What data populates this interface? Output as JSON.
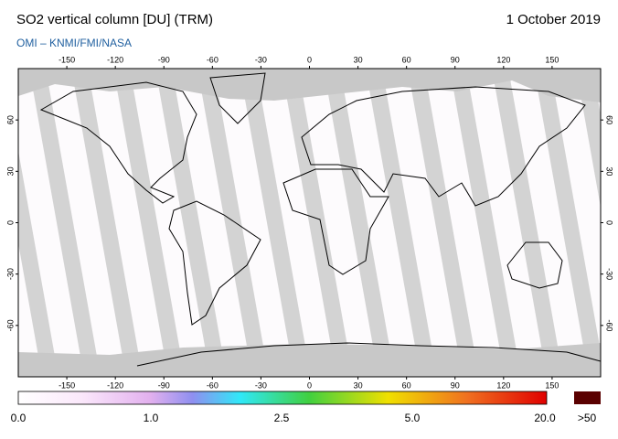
{
  "header": {
    "title": "SO2 vertical column [DU] (TRM)",
    "date": "1 October 2019",
    "source": "OMI  –  KNMI/FMI/NASA"
  },
  "map": {
    "longitude_ticks": [
      -150,
      -120,
      -90,
      -60,
      -30,
      0,
      30,
      60,
      90,
      120,
      150
    ],
    "latitude_ticks": [
      -60,
      -30,
      0,
      30,
      60
    ]
  },
  "colorbar": {
    "labels": [
      "0.0",
      "1.0",
      "2.5",
      "5.0",
      "20.0"
    ],
    "overflow_label": ">50"
  }
}
